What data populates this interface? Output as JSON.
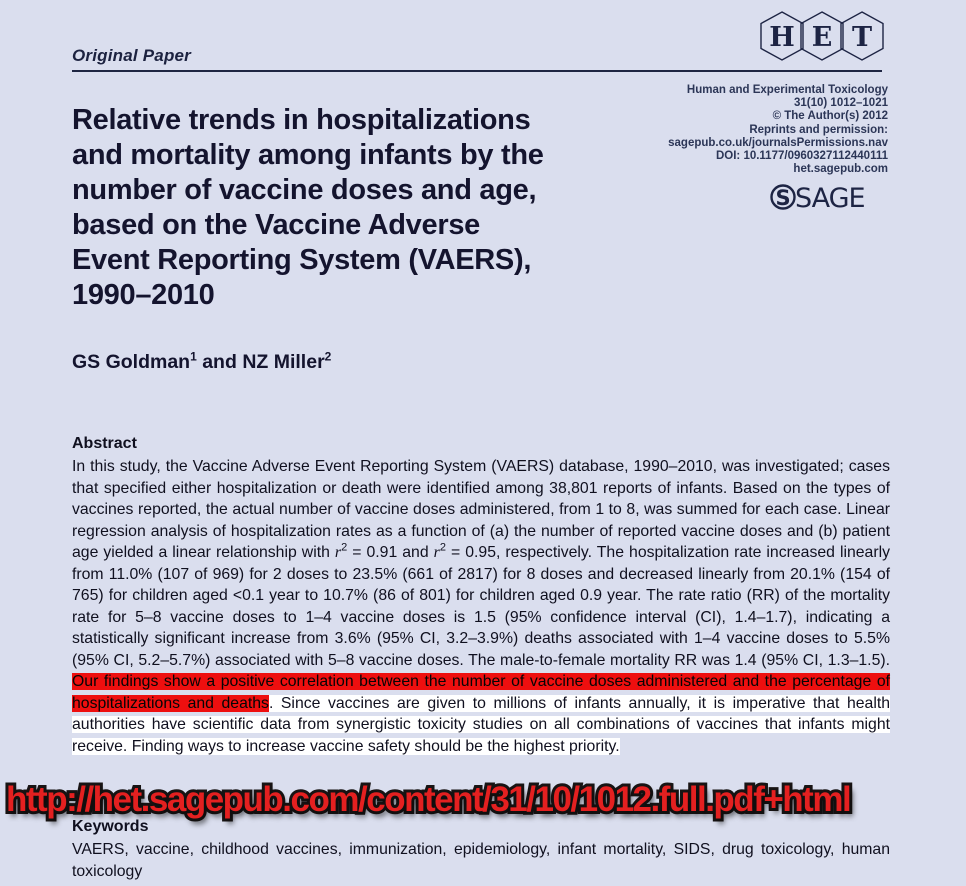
{
  "page": {
    "category_label": "Original Paper"
  },
  "het_logo": {
    "letters": {
      "l1": "H",
      "l2": "E",
      "l3": "T"
    }
  },
  "journal_info": {
    "lines": [
      "Human and Experimental Toxicology",
      "31(10) 1012–1021",
      "© The Author(s) 2012",
      "Reprints and permission:",
      "sagepub.co.uk/journalsPermissions.nav",
      "DOI: 10.1177/0960327112440111",
      "het.sagepub.com"
    ],
    "publisher_mark": "S",
    "publisher_name": "SAGE"
  },
  "title": "Relative trends in hospitalizations\nand mortality among infants by the\nnumber of vaccine doses and age,\nbased on the Vaccine Adverse\nEvent Reporting System (VAERS),\n1990–2010",
  "authors": {
    "author1": "GS Goldman",
    "author1_mark": "1",
    "connector": " and ",
    "author2": "NZ Miller",
    "author2_mark": "2"
  },
  "abstract": {
    "heading": "Abstract",
    "segments": [
      {
        "style": "normal",
        "text": "In this study, the Vaccine Adverse Event Reporting System (VAERS) database, 1990–2010, was investigated; cases that specified either hospitalization or death were identified among 38,801 reports of infants. Based on the types of vaccines reported, the actual number of vaccine doses administered, from 1 to 8, was summed for each case. Linear regression analysis of hospitalization rates as a function of (a) the number of reported vaccine doses and (b) patient age yielded a linear relationship with "
      },
      {
        "style": "italic",
        "text": "r"
      },
      {
        "style": "sup",
        "text": "2"
      },
      {
        "style": "normal",
        "text": " = 0.91 and "
      },
      {
        "style": "italic",
        "text": "r"
      },
      {
        "style": "sup",
        "text": "2"
      },
      {
        "style": "normal",
        "text": " = 0.95, respectively. The hospitalization rate increased linearly from 11.0% (107 of 969) for 2 doses to 23.5% (661 of 2817) for 8 doses and decreased linearly from 20.1% (154 of 765) for children aged <0.1 year to 10.7% (86 of 801) for children aged 0.9 year. The rate ratio (RR) of the mortality rate for 5–8 vaccine doses to 1–4 vaccine doses is 1.5 (95% confidence interval (CI), 1.4–1.7), indicating a statistically significant increase from 3.6% (95% CI, 3.2–3.9%) deaths associated with 1–4 vaccine doses to 5.5% (95% CI, 5.2–5.7%) associated with 5–8 vaccine doses. The male-to-female mortality RR was 1.4 (95% CI, 1.3–1.5). "
      },
      {
        "style": "highlight-red",
        "text": "Our findings show a positive correlation between the number of vaccine doses administered and the percentage of hospitalizations and deaths"
      },
      {
        "style": "highlight-white",
        "text": ". Since vaccines are given to millions of infants annually, it is imperative that health authorities have scientific data from synergistic toxicity studies on all combinations of vaccines that infants might receive. Finding ways to increase vaccine safety should be the highest priority."
      }
    ]
  },
  "url_overlay": "http://het.sagepub.com/content/31/10/1012.full.pdf+html",
  "keywords": {
    "heading": "Keywords",
    "text": "VAERS, vaccine, childhood vaccines, immunization, epidemiology, infant mortality, SIDS, drug toxicology, human toxicology"
  },
  "colors": {
    "background": "#dadeee",
    "highlight_red": "#ee0f0f",
    "highlight_white": "#ffffff",
    "url_red": "#e42020"
  }
}
